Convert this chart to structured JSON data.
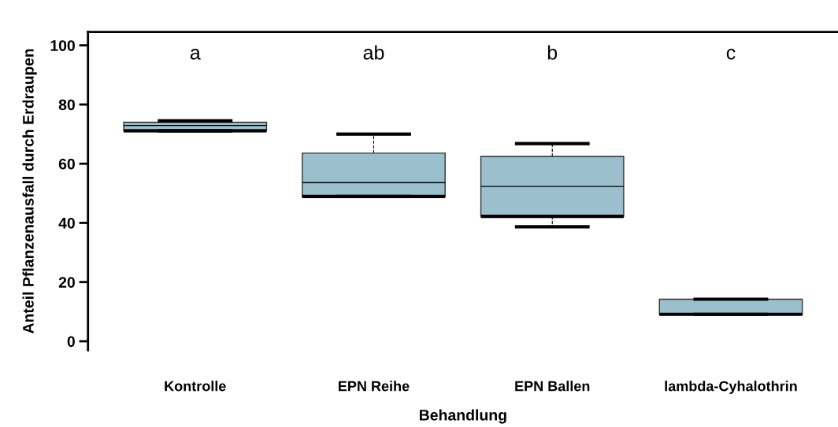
{
  "chart_data": {
    "type": "box",
    "xlabel": "Behandlung",
    "ylabel": "Anteil Pflanzenausfall durch Erdraupen",
    "categories": [
      "Kontrolle",
      "EPN Reihe",
      "EPN Ballen",
      "lambda-Cyhalothrin"
    ],
    "boxes": [
      {
        "low": 71.1,
        "q1": 71.1,
        "median": 71.1,
        "q3": 74.0,
        "high": 74.5,
        "mean": 72.9
      },
      {
        "low": 48.9,
        "q1": 48.9,
        "median": 48.9,
        "q3": 63.6,
        "high": 70.0,
        "mean": 53.6
      },
      {
        "low": 38.7,
        "q1": 42.2,
        "median": 42.2,
        "q3": 62.5,
        "high": 66.8,
        "mean": 52.3
      },
      {
        "low": 9.1,
        "q1": 9.1,
        "median": 9.1,
        "q3": 14.2,
        "high": 14.2
      }
    ],
    "color": "#9bbfcd",
    "ylim": [
      -3,
      104.5
    ],
    "yticks": [
      0,
      20,
      40,
      60,
      80,
      100
    ],
    "grid": false,
    "annotations": [
      "a",
      "ab",
      "b",
      "c"
    ]
  }
}
